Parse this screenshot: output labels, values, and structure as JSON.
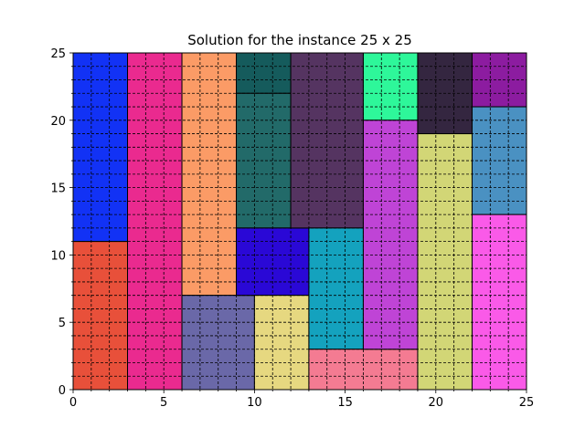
{
  "chart_data": {
    "type": "heatmap",
    "title": "Solution for the instance 25 x 25",
    "xlabel": "",
    "ylabel": "",
    "xlim": [
      0,
      25
    ],
    "ylim": [
      0,
      25
    ],
    "grid": true,
    "grid_style": "dashed",
    "x_ticks": [
      0,
      5,
      10,
      15,
      20,
      25
    ],
    "y_ticks": [
      0,
      5,
      10,
      15,
      20,
      25
    ],
    "x_tick_labels": [
      "0",
      "5",
      "10",
      "15",
      "20",
      "25"
    ],
    "y_tick_labels": [
      "0",
      "5",
      "10",
      "15",
      "20",
      "25"
    ],
    "rectangles": [
      {
        "x": 0,
        "y": 11,
        "w": 3,
        "h": 14,
        "color": "#1232f5"
      },
      {
        "x": 0,
        "y": 0,
        "w": 3,
        "h": 11,
        "color": "#e8503a"
      },
      {
        "x": 3,
        "y": 0,
        "w": 3,
        "h": 25,
        "color": "#ea2a8f"
      },
      {
        "x": 6,
        "y": 7,
        "w": 3,
        "h": 18,
        "color": "#fb9b66"
      },
      {
        "x": 6,
        "y": 0,
        "w": 4,
        "h": 7,
        "color": "#6a68a8"
      },
      {
        "x": 9,
        "y": 22,
        "w": 3,
        "h": 3,
        "color": "#155b5c"
      },
      {
        "x": 9,
        "y": 12,
        "w": 3,
        "h": 10,
        "color": "#226a69"
      },
      {
        "x": 9,
        "y": 7,
        "w": 4,
        "h": 5,
        "color": "#2a08d6"
      },
      {
        "x": 10,
        "y": 0,
        "w": 3,
        "h": 7,
        "color": "#e6d880"
      },
      {
        "x": 12,
        "y": 12,
        "w": 4,
        "h": 13,
        "color": "#553461"
      },
      {
        "x": 13,
        "y": 3,
        "w": 3,
        "h": 9,
        "color": "#14a2be"
      },
      {
        "x": 13,
        "y": 0,
        "w": 6,
        "h": 3,
        "color": "#f47b92"
      },
      {
        "x": 16,
        "y": 20,
        "w": 3,
        "h": 5,
        "color": "#2ef79a"
      },
      {
        "x": 16,
        "y": 3,
        "w": 3,
        "h": 17,
        "color": "#bf44d6"
      },
      {
        "x": 19,
        "y": 19,
        "w": 3,
        "h": 6,
        "color": "#342640"
      },
      {
        "x": 19,
        "y": 0,
        "w": 3,
        "h": 19,
        "color": "#d2d676"
      },
      {
        "x": 22,
        "y": 21,
        "w": 3,
        "h": 4,
        "color": "#8c1ca0"
      },
      {
        "x": 22,
        "y": 13,
        "w": 3,
        "h": 8,
        "color": "#4a91c2"
      },
      {
        "x": 22,
        "y": 0,
        "w": 3,
        "h": 13,
        "color": "#fa5ae8"
      }
    ]
  }
}
